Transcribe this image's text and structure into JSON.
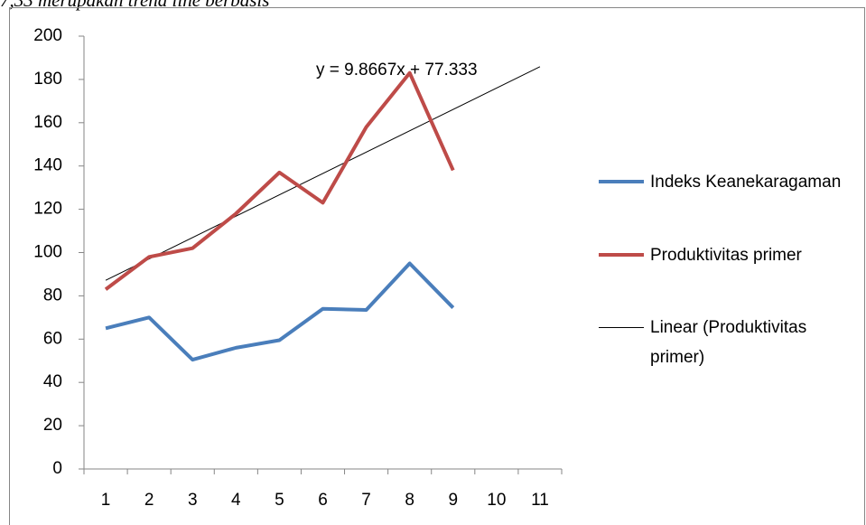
{
  "context_text": "7,33 merupakan trend line berbasis",
  "chart_data": {
    "type": "line",
    "categories": [
      "1",
      "2",
      "3",
      "4",
      "5",
      "6",
      "7",
      "8",
      "9",
      "10",
      "11"
    ],
    "series": [
      {
        "name": "Indeks Keanekaragaman",
        "color": "#4a7ebb",
        "values": [
          65,
          70,
          50.5,
          56,
          59.5,
          74,
          73.5,
          95,
          74.5,
          null,
          null
        ]
      },
      {
        "name": "Produktivitas primer",
        "color": "#be4b48",
        "values": [
          83,
          98,
          102,
          118,
          137,
          123,
          158,
          183,
          138,
          null,
          null
        ]
      }
    ],
    "trendline": {
      "name": "Linear (Produktivitas primer)",
      "color": "#000000",
      "slope": 9.8667,
      "intercept": 77.333,
      "label": "y = 9.8667x + 77.333"
    },
    "ylim": [
      0,
      200
    ],
    "yticks": [
      0,
      20,
      40,
      60,
      80,
      100,
      120,
      140,
      160,
      180,
      200
    ],
    "legend": "right"
  }
}
